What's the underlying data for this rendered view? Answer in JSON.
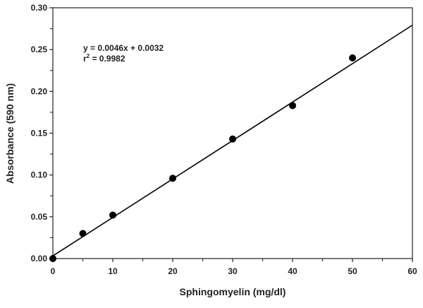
{
  "chart_data": {
    "type": "scatter",
    "title": "",
    "xlabel": "Sphingomyelin (mg/dl)",
    "ylabel": "Absorbance (590 nm)",
    "xlim": [
      0,
      60
    ],
    "ylim": [
      0,
      0.3
    ],
    "xticks": [
      "0",
      "10",
      "20",
      "30",
      "40",
      "50",
      "60"
    ],
    "yticks": [
      "0.00",
      "0.05",
      "0.10",
      "0.15",
      "0.20",
      "0.25",
      "0.30"
    ],
    "grid": false,
    "points": [
      {
        "x": 0,
        "y": 0.0
      },
      {
        "x": 5,
        "y": 0.03
      },
      {
        "x": 10,
        "y": 0.052
      },
      {
        "x": 20,
        "y": 0.096
      },
      {
        "x": 30,
        "y": 0.143
      },
      {
        "x": 40,
        "y": 0.183
      },
      {
        "x": 50,
        "y": 0.24
      }
    ],
    "fit": {
      "slope": 0.0046,
      "intercept": 0.0032
    },
    "annotations": {
      "equation": "y = 0.0046x + 0.0032",
      "r2_prefix": "r",
      "r2_sup": "2",
      "r2_value": " = 0.9982"
    },
    "colors": {
      "marker": "#000000",
      "line": "#000000",
      "axis": "#333333"
    }
  }
}
